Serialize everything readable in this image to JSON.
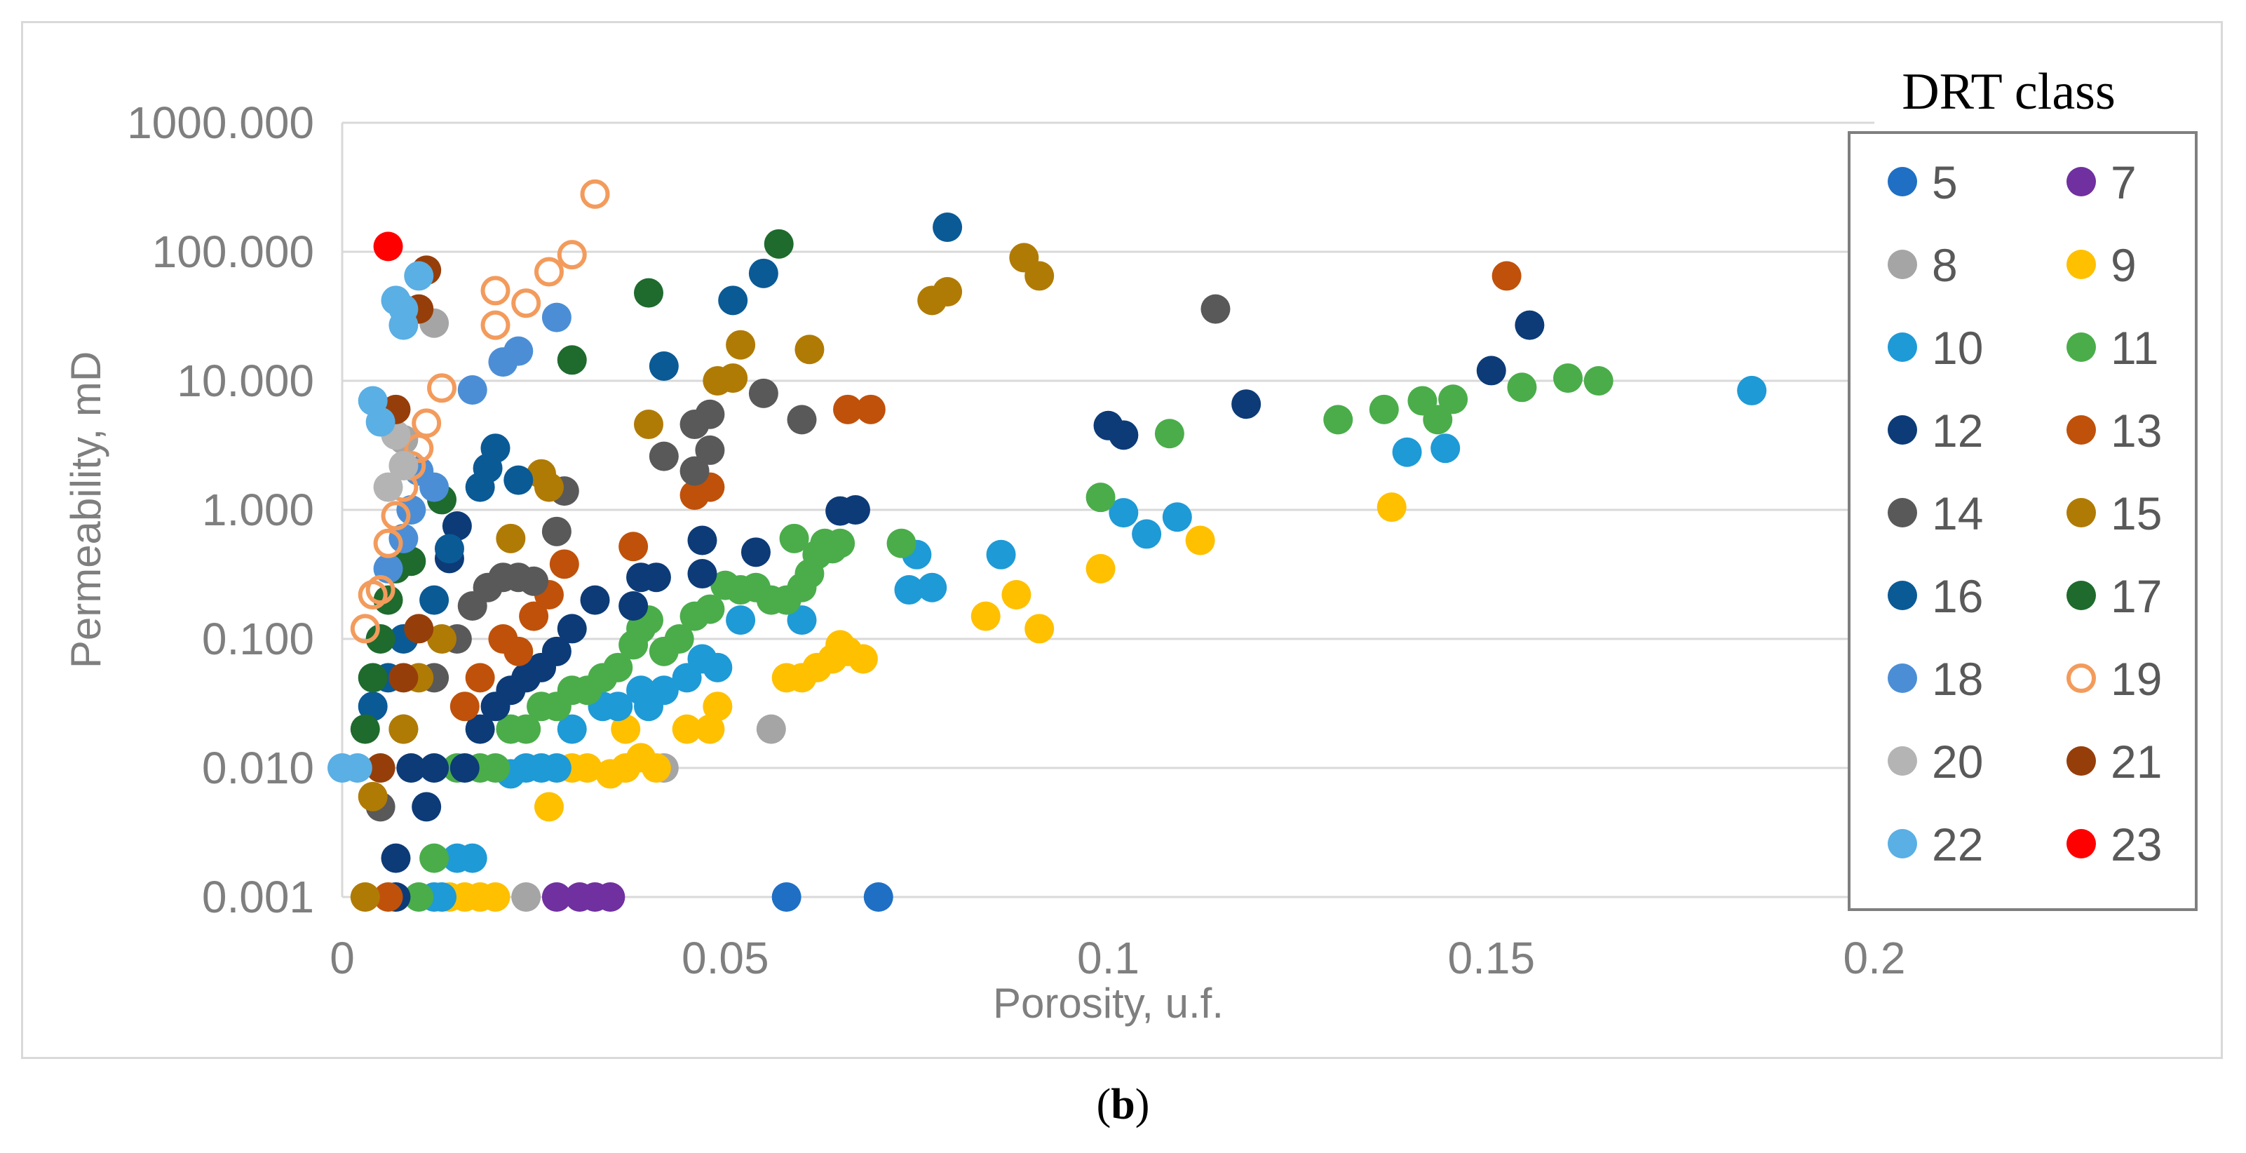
{
  "chart_data": {
    "type": "scatter",
    "xlabel": "Porosity, u.f.",
    "ylabel": "Permeability, mD",
    "xlim": [
      0,
      0.2
    ],
    "ylim": [
      0.001,
      1000
    ],
    "yscale": "log",
    "x_ticks": [
      0,
      0.05,
      0.1,
      0.15,
      0.2
    ],
    "x_tick_labels": [
      "0",
      "0.05",
      "0.1",
      "0.15",
      "0.2"
    ],
    "y_ticks": [
      0.001,
      0.01,
      0.1,
      1,
      10,
      100,
      1000
    ],
    "y_tick_labels": [
      "0.001",
      "0.010",
      "0.100",
      "1.000",
      "10.000",
      "100.000",
      "1000.000"
    ],
    "grid": "horizontal",
    "legend_title": "DRT class",
    "legend_placement": "right",
    "series": [
      {
        "name": "5",
        "color": "#1f6fc5",
        "marker": "filled",
        "points": [
          [
            0.058,
            0.001
          ],
          [
            0.07,
            0.001
          ]
        ]
      },
      {
        "name": "7",
        "color": "#7030a0",
        "marker": "filled",
        "points": [
          [
            0.028,
            0.001
          ],
          [
            0.031,
            0.001
          ],
          [
            0.033,
            0.001
          ],
          [
            0.035,
            0.001
          ]
        ]
      },
      {
        "name": "8",
        "color": "#a5a5a5",
        "marker": "filled",
        "points": [
          [
            0.024,
            0.001
          ],
          [
            0.042,
            0.01
          ],
          [
            0.056,
            0.02
          ],
          [
            0.012,
            28
          ],
          [
            0.008,
            3.5
          ]
        ]
      },
      {
        "name": "9",
        "color": "#ffc000",
        "marker": "filled",
        "points": [
          [
            0.02,
            0.001
          ],
          [
            0.018,
            0.001
          ],
          [
            0.016,
            0.001
          ],
          [
            0.014,
            0.001
          ],
          [
            0.027,
            0.005
          ],
          [
            0.03,
            0.01
          ],
          [
            0.032,
            0.01
          ],
          [
            0.035,
            0.009
          ],
          [
            0.037,
            0.01
          ],
          [
            0.039,
            0.012
          ],
          [
            0.041,
            0.01
          ],
          [
            0.037,
            0.02
          ],
          [
            0.045,
            0.02
          ],
          [
            0.048,
            0.02
          ],
          [
            0.049,
            0.03
          ],
          [
            0.058,
            0.05
          ],
          [
            0.06,
            0.05
          ],
          [
            0.062,
            0.06
          ],
          [
            0.064,
            0.07
          ],
          [
            0.065,
            0.09
          ],
          [
            0.066,
            0.08
          ],
          [
            0.068,
            0.07
          ],
          [
            0.084,
            0.15
          ],
          [
            0.088,
            0.22
          ],
          [
            0.091,
            0.12
          ],
          [
            0.099,
            0.35
          ],
          [
            0.112,
            0.58
          ],
          [
            0.137,
            1.05
          ]
        ]
      },
      {
        "name": "10",
        "color": "#1e9ad6",
        "marker": "filled",
        "points": [
          [
            0.012,
            0.001
          ],
          [
            0.013,
            0.001
          ],
          [
            0.015,
            0.002
          ],
          [
            0.017,
            0.002
          ],
          [
            0.022,
            0.009
          ],
          [
            0.024,
            0.01
          ],
          [
            0.026,
            0.01
          ],
          [
            0.028,
            0.01
          ],
          [
            0.03,
            0.02
          ],
          [
            0.034,
            0.03
          ],
          [
            0.036,
            0.03
          ],
          [
            0.039,
            0.04
          ],
          [
            0.04,
            0.03
          ],
          [
            0.042,
            0.04
          ],
          [
            0.045,
            0.05
          ],
          [
            0.047,
            0.07
          ],
          [
            0.049,
            0.06
          ],
          [
            0.052,
            0.14
          ],
          [
            0.06,
            0.14
          ],
          [
            0.074,
            0.24
          ],
          [
            0.075,
            0.45
          ],
          [
            0.077,
            0.25
          ],
          [
            0.086,
            0.45
          ],
          [
            0.102,
            0.95
          ],
          [
            0.105,
            0.65
          ],
          [
            0.109,
            0.88
          ],
          [
            0.139,
            2.8
          ],
          [
            0.144,
            3.0
          ],
          [
            0.184,
            8.4
          ]
        ]
      },
      {
        "name": "11",
        "color": "#4aad4a",
        "marker": "filled",
        "points": [
          [
            0.01,
            0.001
          ],
          [
            0.012,
            0.002
          ],
          [
            0.015,
            0.01
          ],
          [
            0.018,
            0.01
          ],
          [
            0.02,
            0.01
          ],
          [
            0.022,
            0.02
          ],
          [
            0.024,
            0.02
          ],
          [
            0.026,
            0.03
          ],
          [
            0.028,
            0.03
          ],
          [
            0.03,
            0.04
          ],
          [
            0.032,
            0.04
          ],
          [
            0.034,
            0.05
          ],
          [
            0.036,
            0.06
          ],
          [
            0.038,
            0.09
          ],
          [
            0.039,
            0.12
          ],
          [
            0.04,
            0.14
          ],
          [
            0.042,
            0.08
          ],
          [
            0.044,
            0.1
          ],
          [
            0.046,
            0.15
          ],
          [
            0.048,
            0.17
          ],
          [
            0.05,
            0.26
          ],
          [
            0.052,
            0.24
          ],
          [
            0.054,
            0.25
          ],
          [
            0.056,
            0.2
          ],
          [
            0.058,
            0.2
          ],
          [
            0.059,
            0.6
          ],
          [
            0.06,
            0.25
          ],
          [
            0.061,
            0.32
          ],
          [
            0.062,
            0.45
          ],
          [
            0.063,
            0.55
          ],
          [
            0.064,
            0.5
          ],
          [
            0.065,
            0.55
          ],
          [
            0.073,
            0.55
          ],
          [
            0.099,
            1.25
          ],
          [
            0.108,
            3.9
          ],
          [
            0.13,
            5.0
          ],
          [
            0.136,
            6.0
          ],
          [
            0.141,
            7.0
          ],
          [
            0.143,
            5.0
          ],
          [
            0.145,
            7.2
          ],
          [
            0.154,
            8.9
          ],
          [
            0.16,
            10.5
          ],
          [
            0.164,
            10.0
          ]
        ]
      },
      {
        "name": "12",
        "color": "#0c3b78",
        "marker": "filled",
        "points": [
          [
            0.007,
            0.001
          ],
          [
            0.007,
            0.002
          ],
          [
            0.009,
            0.01
          ],
          [
            0.011,
            0.005
          ],
          [
            0.012,
            0.01
          ],
          [
            0.016,
            0.01
          ],
          [
            0.018,
            0.02
          ],
          [
            0.02,
            0.03
          ],
          [
            0.022,
            0.04
          ],
          [
            0.024,
            0.05
          ],
          [
            0.026,
            0.06
          ],
          [
            0.028,
            0.08
          ],
          [
            0.03,
            0.12
          ],
          [
            0.033,
            0.2
          ],
          [
            0.038,
            0.18
          ],
          [
            0.039,
            0.3
          ],
          [
            0.041,
            0.3
          ],
          [
            0.047,
            0.32
          ],
          [
            0.047,
            0.58
          ],
          [
            0.054,
            0.47
          ],
          [
            0.065,
            0.98
          ],
          [
            0.067,
            1.0
          ],
          [
            0.1,
            4.5
          ],
          [
            0.102,
            3.8
          ],
          [
            0.118,
            6.6
          ],
          [
            0.15,
            12.0
          ],
          [
            0.155,
            27.0
          ],
          [
            0.015,
            0.75
          ],
          [
            0.014,
            0.42
          ]
        ]
      },
      {
        "name": "13",
        "color": "#c0510a",
        "marker": "filled",
        "points": [
          [
            0.006,
            0.001
          ],
          [
            0.016,
            0.03
          ],
          [
            0.018,
            0.05
          ],
          [
            0.021,
            0.1
          ],
          [
            0.023,
            0.08
          ],
          [
            0.025,
            0.15
          ],
          [
            0.027,
            0.22
          ],
          [
            0.029,
            0.38
          ],
          [
            0.038,
            0.52
          ],
          [
            0.046,
            1.3
          ],
          [
            0.048,
            1.5
          ],
          [
            0.066,
            6.0
          ],
          [
            0.069,
            6.0
          ],
          [
            0.152,
            65.0
          ]
        ]
      },
      {
        "name": "14",
        "color": "#595959",
        "marker": "filled",
        "points": [
          [
            0.005,
            0.005
          ],
          [
            0.008,
            0.02
          ],
          [
            0.012,
            0.05
          ],
          [
            0.015,
            0.1
          ],
          [
            0.017,
            0.18
          ],
          [
            0.019,
            0.25
          ],
          [
            0.021,
            0.3
          ],
          [
            0.023,
            0.3
          ],
          [
            0.025,
            0.28
          ],
          [
            0.028,
            0.68
          ],
          [
            0.029,
            1.4
          ],
          [
            0.042,
            2.6
          ],
          [
            0.046,
            2.0
          ],
          [
            0.046,
            4.6
          ],
          [
            0.048,
            2.9
          ],
          [
            0.048,
            5.5
          ],
          [
            0.055,
            8.0
          ],
          [
            0.06,
            5.0
          ],
          [
            0.114,
            36.0
          ]
        ]
      },
      {
        "name": "15",
        "color": "#b07b04",
        "marker": "filled",
        "points": [
          [
            0.003,
            0.001
          ],
          [
            0.004,
            0.006
          ],
          [
            0.008,
            0.02
          ],
          [
            0.01,
            0.05
          ],
          [
            0.013,
            0.1
          ],
          [
            0.022,
            0.6
          ],
          [
            0.026,
            1.9
          ],
          [
            0.027,
            1.5
          ],
          [
            0.04,
            4.6
          ],
          [
            0.049,
            10.0
          ],
          [
            0.051,
            10.5
          ],
          [
            0.052,
            19.0
          ],
          [
            0.061,
            17.5
          ],
          [
            0.077,
            42.0
          ],
          [
            0.079,
            49.0
          ],
          [
            0.089,
            90.0
          ],
          [
            0.091,
            65.0
          ]
        ]
      },
      {
        "name": "16",
        "color": "#0a5a96",
        "marker": "filled",
        "points": [
          [
            0.004,
            0.03
          ],
          [
            0.006,
            0.05
          ],
          [
            0.008,
            0.1
          ],
          [
            0.012,
            0.2
          ],
          [
            0.014,
            0.5
          ],
          [
            0.018,
            1.5
          ],
          [
            0.019,
            2.1
          ],
          [
            0.02,
            3.0
          ],
          [
            0.023,
            1.7
          ],
          [
            0.042,
            13.0
          ],
          [
            0.051,
            42.0
          ],
          [
            0.055,
            68.0
          ],
          [
            0.079,
            155.0
          ]
        ]
      },
      {
        "name": "17",
        "color": "#1e6b2d",
        "marker": "filled",
        "points": [
          [
            0.003,
            0.02
          ],
          [
            0.004,
            0.05
          ],
          [
            0.005,
            0.1
          ],
          [
            0.006,
            0.2
          ],
          [
            0.007,
            0.35
          ],
          [
            0.009,
            0.4
          ],
          [
            0.013,
            1.2
          ],
          [
            0.03,
            14.5
          ],
          [
            0.04,
            48.0
          ],
          [
            0.057,
            115.0
          ]
        ]
      },
      {
        "name": "18",
        "color": "#4b8ed6",
        "marker": "filled",
        "points": [
          [
            0.006,
            0.35
          ],
          [
            0.008,
            0.6
          ],
          [
            0.009,
            1.0
          ],
          [
            0.01,
            2.0
          ],
          [
            0.017,
            8.5
          ],
          [
            0.021,
            14.0
          ],
          [
            0.023,
            17.0
          ],
          [
            0.028,
            31.0
          ],
          [
            0.012,
            1.5
          ]
        ]
      },
      {
        "name": "19",
        "color": "#f39b5c",
        "marker": "hollow",
        "points": [
          [
            0.003,
            0.12
          ],
          [
            0.004,
            0.22
          ],
          [
            0.005,
            0.24
          ],
          [
            0.006,
            0.55
          ],
          [
            0.007,
            0.9
          ],
          [
            0.008,
            1.5
          ],
          [
            0.009,
            2.2
          ],
          [
            0.01,
            3.0
          ],
          [
            0.011,
            4.7
          ],
          [
            0.013,
            8.8
          ],
          [
            0.02,
            27.0
          ],
          [
            0.02,
            50.0
          ],
          [
            0.024,
            40.0
          ],
          [
            0.027,
            70.0
          ],
          [
            0.03,
            95.0
          ],
          [
            0.033,
            280.0
          ]
        ]
      },
      {
        "name": "20",
        "color": "#b4b4b4",
        "marker": "filled",
        "points": [
          [
            0.006,
            1.5
          ],
          [
            0.008,
            2.2
          ],
          [
            0.007,
            3.8
          ]
        ]
      },
      {
        "name": "21",
        "color": "#963e0a",
        "marker": "filled",
        "points": [
          [
            0.005,
            0.01
          ],
          [
            0.008,
            0.05
          ],
          [
            0.01,
            0.12
          ],
          [
            0.007,
            6.0
          ],
          [
            0.01,
            36.0
          ],
          [
            0.011,
            72.0
          ]
        ]
      },
      {
        "name": "22",
        "color": "#5aafe4",
        "marker": "filled",
        "points": [
          [
            0.0,
            0.01
          ],
          [
            0.002,
            0.01
          ],
          [
            0.004,
            7.0
          ],
          [
            0.005,
            4.8
          ],
          [
            0.007,
            42.0
          ],
          [
            0.008,
            36.0
          ],
          [
            0.008,
            27.0
          ],
          [
            0.01,
            65.0
          ]
        ]
      },
      {
        "name": "23",
        "color": "#ff0000",
        "marker": "filled",
        "points": [
          [
            0.006,
            110.0
          ]
        ]
      }
    ]
  },
  "caption": {
    "open": "(",
    "label": "b",
    "close": ")"
  }
}
